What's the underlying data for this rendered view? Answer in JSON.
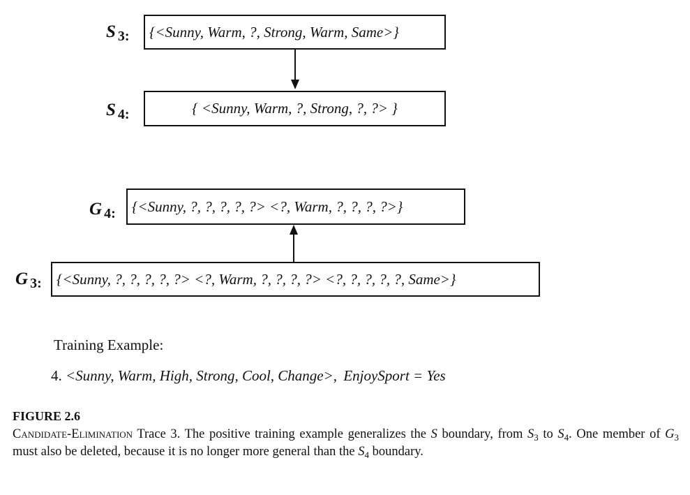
{
  "diagram": {
    "s3": {
      "label": "S",
      "subscript": "3:",
      "set": "{<Sunny, Warm, ?, Strong, Warm, Same>}"
    },
    "s4": {
      "label": "S",
      "subscript": "4:",
      "set": "{ <Sunny, Warm, ?, Strong, ?, ?> }"
    },
    "g4": {
      "label": "G",
      "subscript": "4:",
      "set": "{<Sunny, ?, ?, ?, ?, ?>   <?, Warm, ?, ?, ?, ?>}"
    },
    "g3": {
      "label": "G",
      "subscript": "3:",
      "set": "{<Sunny, ?, ?, ?, ?, ?>   <?, Warm, ?, ?, ?, ?>   <?, ?, ?, ?, ?, Same>}"
    }
  },
  "training": {
    "heading": "Training Example:",
    "number": "4.",
    "example": "<Sunny, Warm, High, Strong, Cool, Change>,",
    "target": "EnjoySport = Yes"
  },
  "figure": {
    "title": "FIGURE 2.6",
    "caption": {
      "name": "Candidate-Elimination",
      "p1": " Trace 3. The positive training example generalizes the ",
      "s": "S",
      "p2": " boundary, from ",
      "s3": "S",
      "s3sub": "3",
      "p3": " to ",
      "s4": "S",
      "s4sub": "4",
      "p4": ". One member of ",
      "g3": "G",
      "g3sub": "3",
      "p5": " must also be deleted, because it is no longer more general than the ",
      "s4b": "S",
      "s4bsub": "4",
      "p6": " boundary."
    }
  }
}
